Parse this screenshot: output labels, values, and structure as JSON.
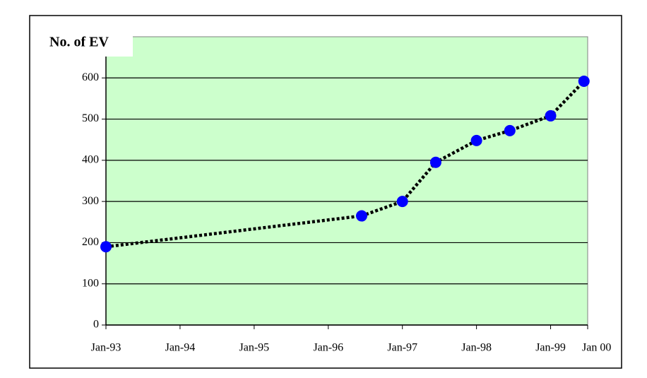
{
  "chart_data": {
    "type": "line",
    "title": "No. of EV",
    "x": [
      1993,
      1996.45,
      1997,
      1997.45,
      1998,
      1998.45,
      1999,
      1999.45
    ],
    "series": [
      {
        "name": "No. of EV",
        "color": "#0000ff",
        "values": [
          190,
          265,
          300,
          395,
          448,
          472,
          508,
          592
        ]
      }
    ],
    "xlim": [
      1993,
      1999.5
    ],
    "xticks": [
      {
        "value": 1993,
        "label": "Jan-93"
      },
      {
        "value": 1994,
        "label": "Jan-94"
      },
      {
        "value": 1995,
        "label": "Jan-95"
      },
      {
        "value": 1996,
        "label": "Jan-96"
      },
      {
        "value": 1997,
        "label": "Jan-97"
      },
      {
        "value": 1998,
        "label": "Jan-98"
      },
      {
        "value": 1999,
        "label": "Jan-99"
      },
      {
        "value": 1999.5,
        "label": "Jan 00"
      }
    ],
    "ylim": [
      0,
      700
    ],
    "yticks": [
      0,
      100,
      200,
      300,
      400,
      500,
      600
    ],
    "grid": true,
    "plot_background": "#ccffcc",
    "line_color": "#000000"
  }
}
